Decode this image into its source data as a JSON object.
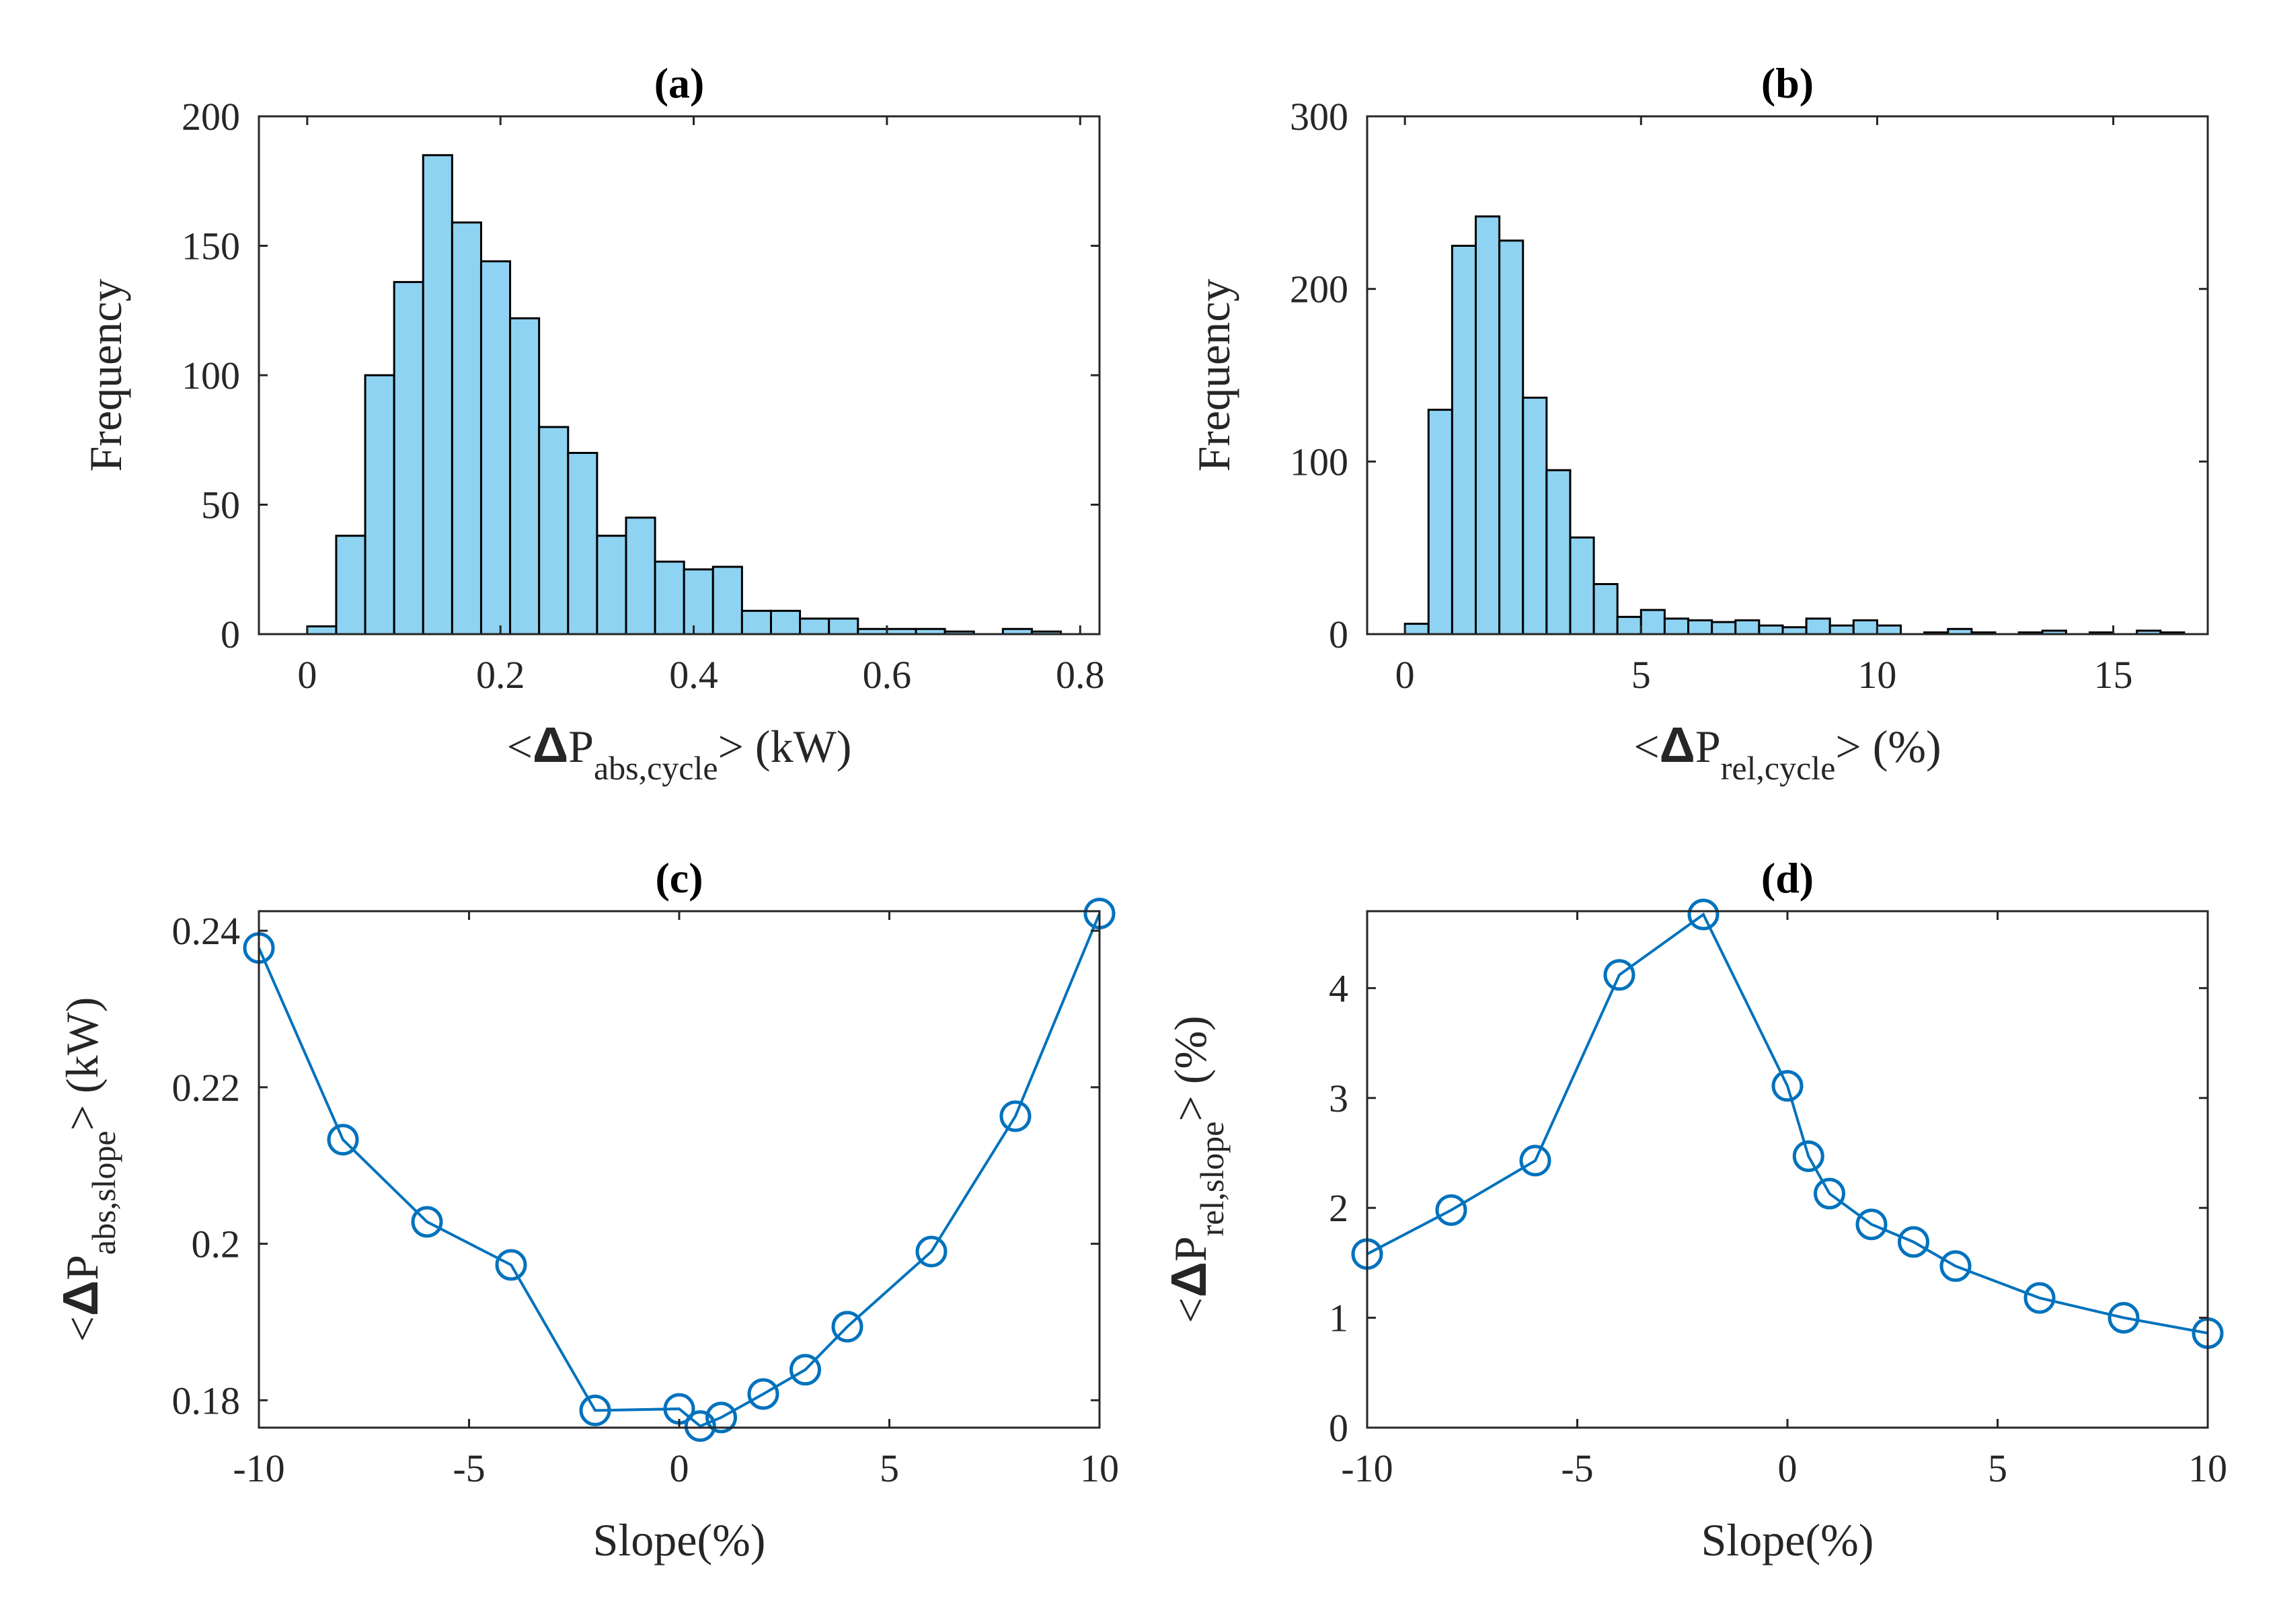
{
  "colors": {
    "bar_fill": "#8fd3f2",
    "line": "#0072bd",
    "axis": "#262626"
  },
  "chart_data": [
    {
      "id": "a",
      "type": "bar",
      "title": "(a)",
      "xlabel": {
        "prefix": "<",
        "delta": "Δ",
        "main": "P",
        "sub": "abs,cycle",
        "suffix": "> (kW)"
      },
      "ylabel": "Frequency",
      "xlim": [
        -0.05,
        0.82
      ],
      "ylim": [
        0,
        200
      ],
      "xticks": [
        0,
        0.2,
        0.4,
        0.6,
        0.8
      ],
      "xtick_labels": [
        "0",
        "0.2",
        "0.4",
        "0.6",
        "0.8"
      ],
      "yticks": [
        0,
        50,
        100,
        150,
        200
      ],
      "ytick_labels": [
        "0",
        "50",
        "100",
        "150",
        "200"
      ],
      "bin_start": 0.0,
      "bin_width": 0.03,
      "values": [
        3,
        38,
        100,
        136,
        185,
        159,
        144,
        122,
        80,
        70,
        38,
        45,
        28,
        25,
        26,
        9,
        9,
        6,
        6,
        2,
        2,
        2,
        1,
        0,
        2,
        1
      ]
    },
    {
      "id": "b",
      "type": "bar",
      "title": "(b)",
      "xlabel": {
        "prefix": "<",
        "delta": "Δ",
        "main": "P",
        "sub": "rel,cycle",
        "suffix": "> (%)"
      },
      "ylabel": "Frequency",
      "xlim": [
        -0.8,
        17.0
      ],
      "ylim": [
        0,
        300
      ],
      "xticks": [
        0,
        5,
        10,
        15
      ],
      "xtick_labels": [
        "0",
        "5",
        "10",
        "15"
      ],
      "yticks": [
        0,
        100,
        200,
        300
      ],
      "ytick_labels": [
        "0",
        "100",
        "200",
        "300"
      ],
      "bin_start": 0.0,
      "bin_width": 0.5,
      "values": [
        6,
        130,
        225,
        242,
        228,
        137,
        95,
        56,
        29,
        10,
        14,
        9,
        8,
        7,
        8,
        5,
        4,
        9,
        5,
        8,
        5,
        0,
        1,
        3,
        1,
        0,
        1,
        2,
        0,
        1,
        0,
        2,
        1
      ]
    },
    {
      "id": "c",
      "type": "line",
      "title": "(c)",
      "xlabel": "Slope(%)",
      "ylabel": {
        "prefix": "<",
        "delta": "Δ",
        "main": "P",
        "sub": "abs,slope",
        "suffix": "> (kW)"
      },
      "xlim": [
        -10,
        10
      ],
      "ylim": [
        0.1765,
        0.2425
      ],
      "xticks": [
        -10,
        -5,
        0,
        5,
        10
      ],
      "xtick_labels": [
        "-10",
        "-5",
        "0",
        "5",
        "10"
      ],
      "yticks": [
        0.18,
        0.2,
        0.22,
        0.24
      ],
      "ytick_labels": [
        "0.18",
        "0.2",
        "0.22",
        "0.24"
      ],
      "x": [
        -10,
        -8,
        -6,
        -4,
        -2,
        0,
        0.5,
        1,
        2,
        3,
        4,
        6,
        8,
        10
      ],
      "y": [
        0.2378,
        0.2133,
        0.2028,
        0.1973,
        0.1787,
        0.1789,
        0.1767,
        0.1778,
        0.1808,
        0.1839,
        0.1894,
        0.199,
        0.2163,
        0.2422
      ]
    },
    {
      "id": "d",
      "type": "line",
      "title": "(d)",
      "xlabel": "Slope(%)",
      "ylabel": {
        "prefix": "<",
        "delta": "Δ",
        "main": "P",
        "sub": "rel,slope",
        "suffix": "> (%)"
      },
      "xlim": [
        -10,
        10
      ],
      "ylim": [
        0,
        4.7
      ],
      "xticks": [
        -10,
        -5,
        0,
        5,
        10
      ],
      "xtick_labels": [
        "-10",
        "-5",
        "0",
        "5",
        "10"
      ],
      "yticks": [
        0,
        1,
        2,
        3,
        4
      ],
      "ytick_labels": [
        "0",
        "1",
        "2",
        "3",
        "4"
      ],
      "x": [
        -10,
        -8,
        -6,
        -4,
        -2,
        0,
        0.5,
        1,
        2,
        3,
        4,
        6,
        8,
        10
      ],
      "y": [
        1.58,
        1.98,
        2.43,
        4.12,
        4.67,
        3.11,
        2.47,
        2.13,
        1.85,
        1.69,
        1.47,
        1.18,
        1.0,
        0.86
      ]
    }
  ]
}
